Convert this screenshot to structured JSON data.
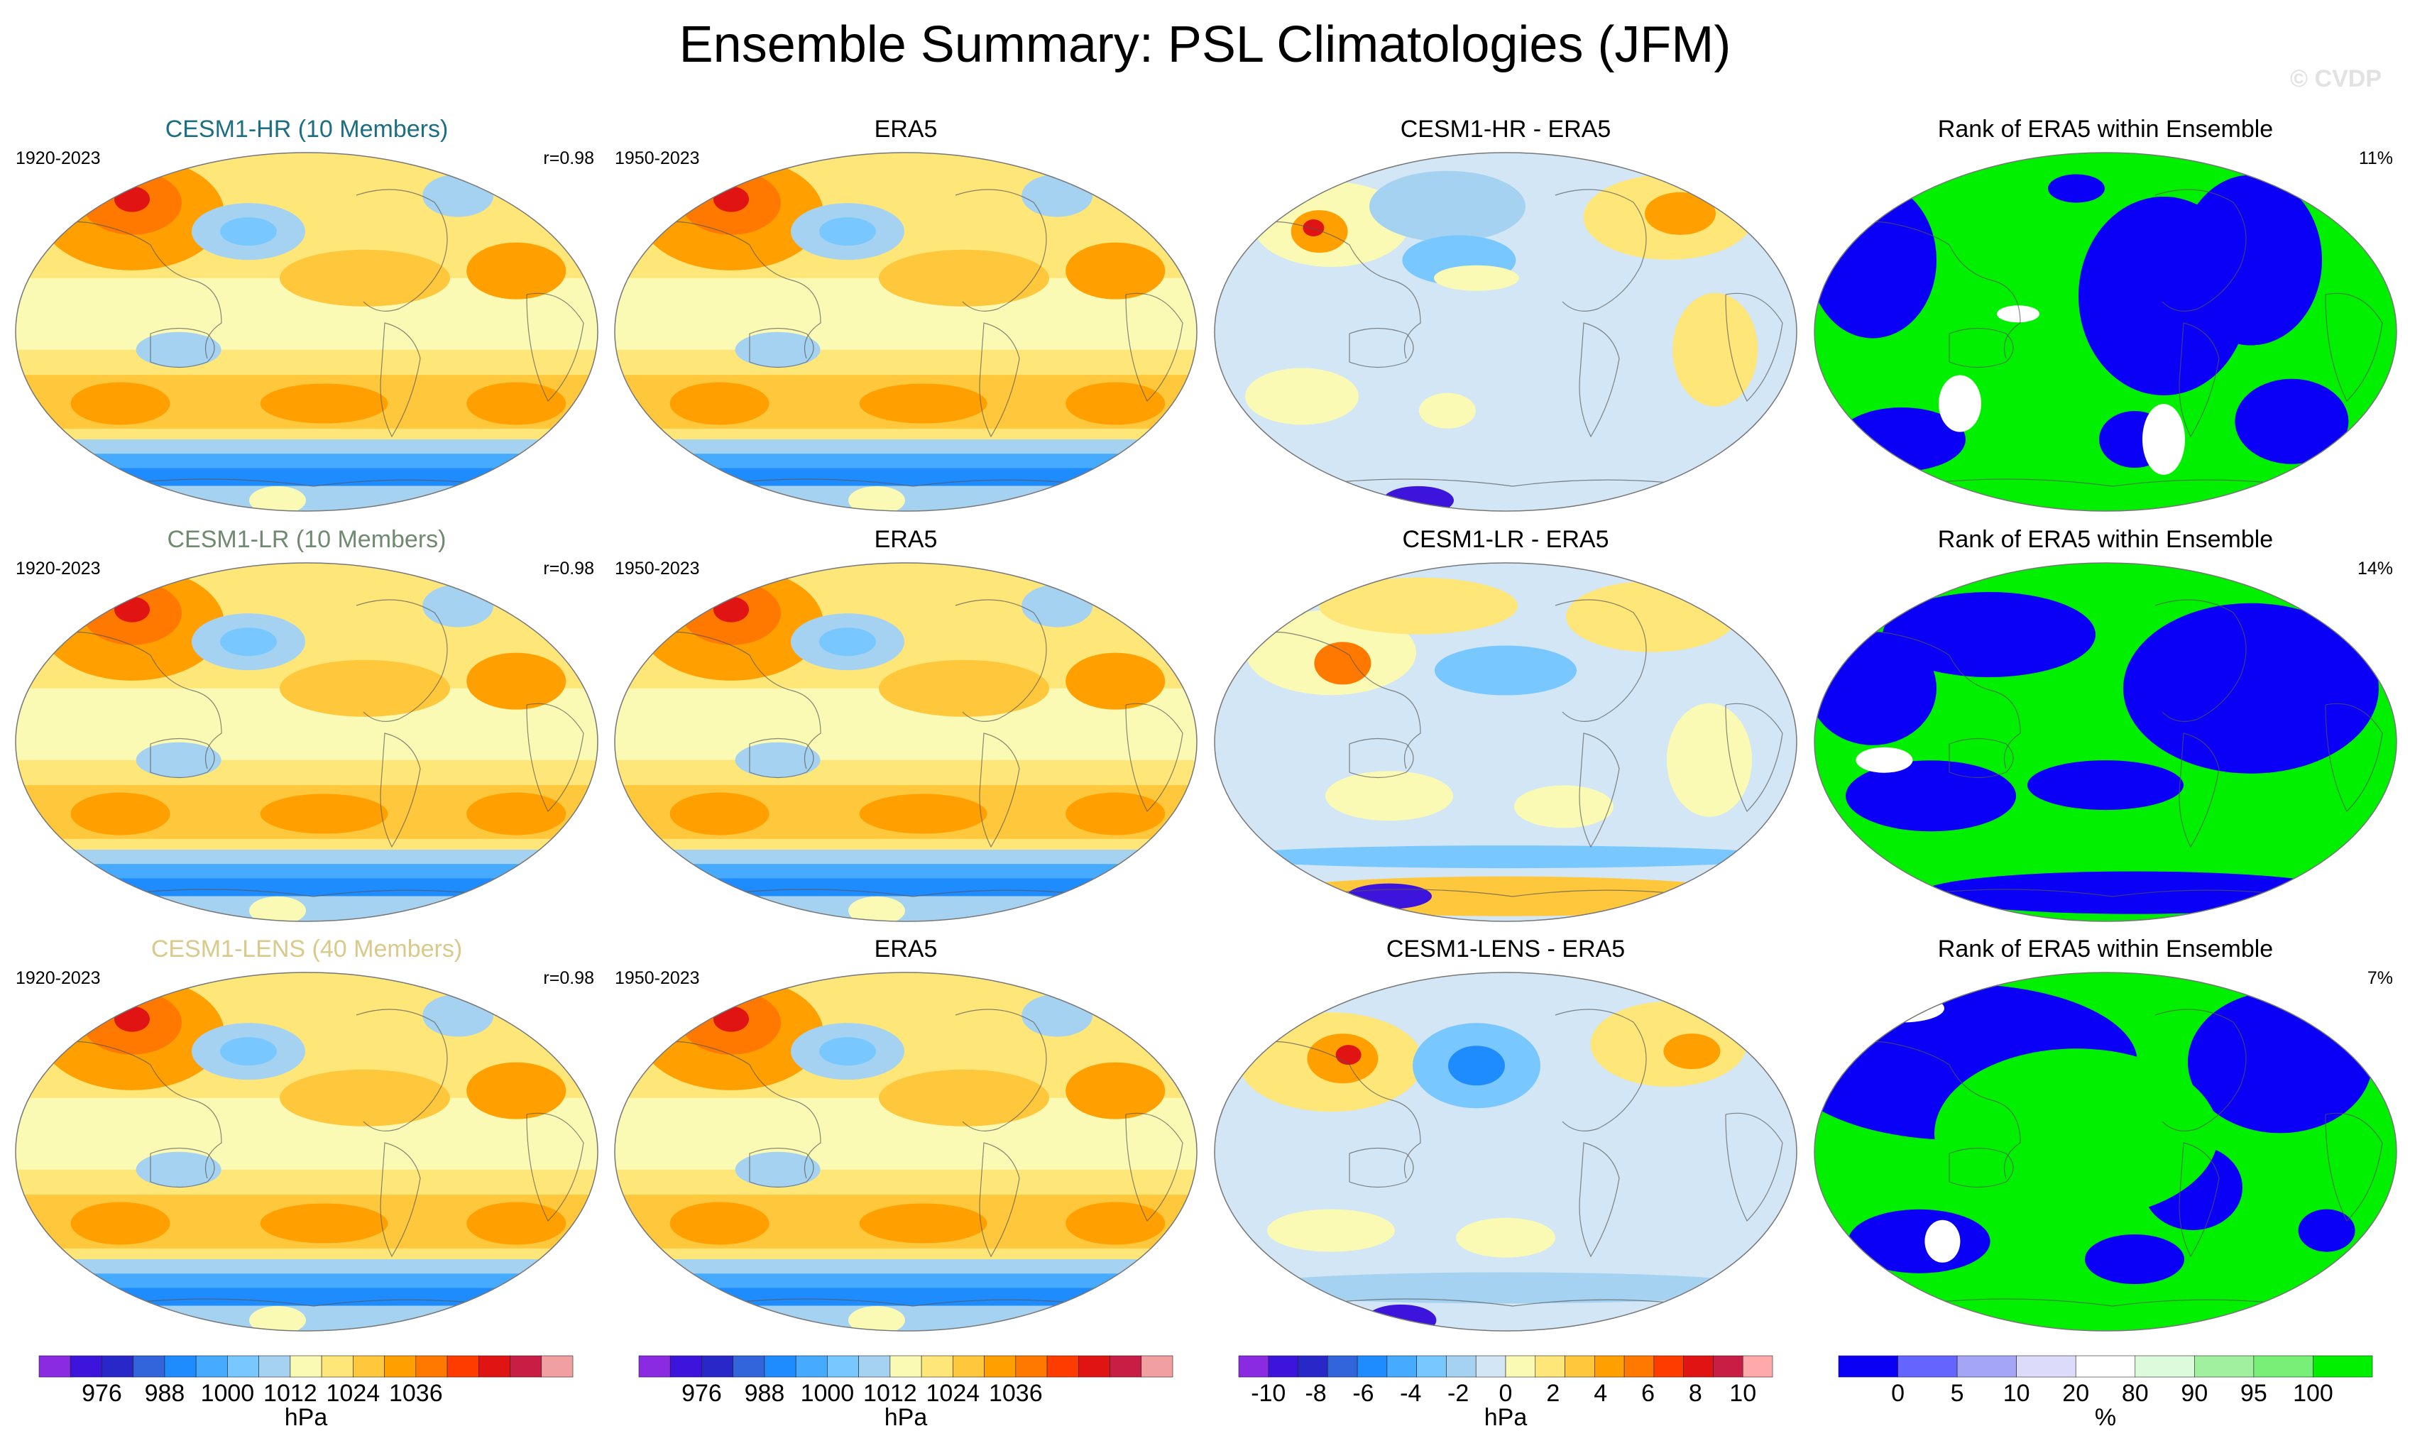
{
  "title": "Ensemble Summary: PSL Climatologies (JFM)",
  "copyright": "© CVDP",
  "rows": [
    {
      "model": {
        "title": "CESM1-HR (10 Members)",
        "title_color": "#1c6f83",
        "years": "1920-2023",
        "r": "r=0.98"
      },
      "obs": {
        "title": "ERA5",
        "years": "1950-2023"
      },
      "diff": {
        "title": "CESM1-HR - ERA5"
      },
      "rank": {
        "title": "Rank of ERA5 within Ensemble",
        "pct": "11%"
      }
    },
    {
      "model": {
        "title": "CESM1-LR (10 Members)",
        "title_color": "#6f8a6f",
        "years": "1920-2023",
        "r": "r=0.98"
      },
      "obs": {
        "title": "ERA5",
        "years": "1950-2023"
      },
      "diff": {
        "title": "CESM1-LR - ERA5"
      },
      "rank": {
        "title": "Rank of ERA5 within Ensemble",
        "pct": "14%"
      }
    },
    {
      "model": {
        "title": "CESM1-LENS (40 Members)",
        "title_color": "#d9c98a",
        "years": "1920-2023",
        "r": "r=0.98"
      },
      "obs": {
        "title": "ERA5",
        "years": "1950-2023"
      },
      "diff": {
        "title": "CESM1-LENS - ERA5"
      },
      "rank": {
        "title": "Rank of ERA5 within Ensemble",
        "pct": "7%"
      }
    }
  ],
  "colorbars": [
    {
      "unit": "hPa",
      "labels": [
        "976",
        "988",
        "1000",
        "1012",
        "1024",
        "1036"
      ],
      "colors": [
        "#8a2be2",
        "#3c14dc",
        "#2828c8",
        "#3264dc",
        "#1e8cff",
        "#46aaff",
        "#78c8ff",
        "#a5d2f0",
        "#fafab4",
        "#ffe678",
        "#ffc83c",
        "#ffa000",
        "#ff7800",
        "#ff3c00",
        "#e11414",
        "#c81e46",
        "#f0a0a0"
      ]
    },
    {
      "unit": "hPa",
      "labels": [
        "976",
        "988",
        "1000",
        "1012",
        "1024",
        "1036"
      ],
      "colors": [
        "#8a2be2",
        "#3c14dc",
        "#2828c8",
        "#3264dc",
        "#1e8cff",
        "#46aaff",
        "#78c8ff",
        "#a5d2f0",
        "#fafab4",
        "#ffe678",
        "#ffc83c",
        "#ffa000",
        "#ff7800",
        "#ff3c00",
        "#e11414",
        "#c81e46",
        "#f0a0a0"
      ]
    },
    {
      "unit": "hPa",
      "labels": [
        "-10",
        "-8",
        "-6",
        "-4",
        "-2",
        "0",
        "2",
        "4",
        "6",
        "8",
        "10"
      ],
      "colors": [
        "#8a2be2",
        "#3c14dc",
        "#2828c8",
        "#3264dc",
        "#1e8cff",
        "#46aaff",
        "#78c8ff",
        "#a5d2f0",
        "#d2e6f5",
        "#fafab4",
        "#ffe678",
        "#ffc83c",
        "#ffa000",
        "#ff7800",
        "#ff3c00",
        "#e11414",
        "#c81e46",
        "#ffaaaa"
      ]
    },
    {
      "unit": "%",
      "labels": [
        "0",
        "5",
        "10",
        "20",
        "80",
        "90",
        "95",
        "100"
      ],
      "colors": [
        "#0a00f5",
        "#6464ff",
        "#a5a5f5",
        "#dcdcfa",
        "#ffffff",
        "#dcfadc",
        "#a0f0a0",
        "#78f078",
        "#00f000"
      ]
    }
  ]
}
